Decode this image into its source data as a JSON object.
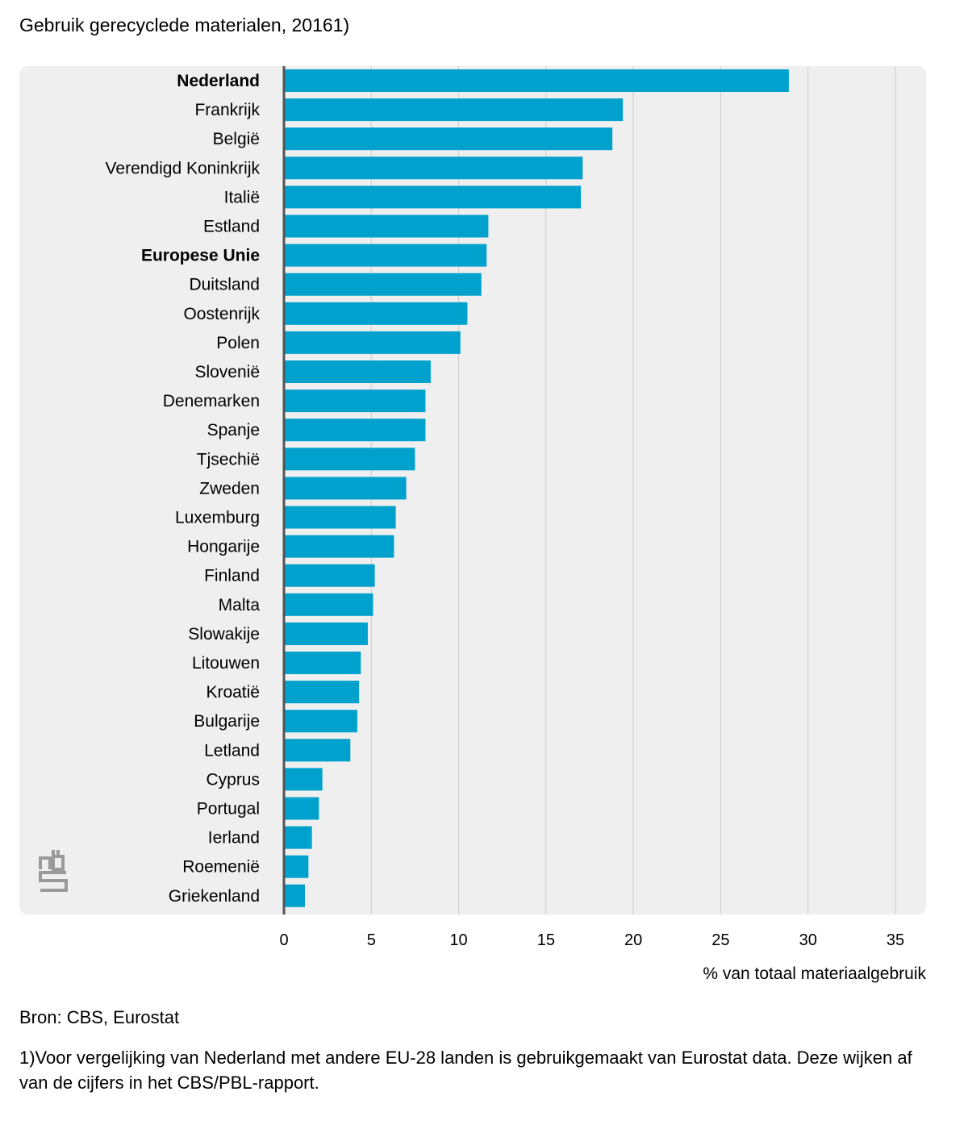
{
  "chart_data": {
    "type": "bar",
    "orientation": "horizontal",
    "title": "Gebruik gerecyclede materialen, 20161)",
    "xlabel": "% van totaal materiaalgebruik",
    "ylabel": "",
    "xlim": [
      0,
      35
    ],
    "ticks": [
      "0",
      "5",
      "10",
      "15",
      "20",
      "25",
      "30",
      "35"
    ],
    "tick_values": [
      0,
      5,
      10,
      15,
      20,
      25,
      30,
      35
    ],
    "grid": "vertical",
    "legend": "none",
    "bar_color": "#00a1cd",
    "background_color": "#efefef",
    "categories": [
      "Nederland",
      "Frankrijk",
      "België",
      "Verendigd Koninkrijk",
      "Italië",
      "Estland",
      "Europese Unie",
      "Duitsland",
      "Oostenrijk",
      "Polen",
      "Slovenië",
      "Denemarken",
      "Spanje",
      "Tjsechië",
      "Zweden",
      "Luxemburg",
      "Hongarije",
      "Finland",
      "Malta",
      "Slowakije",
      "Litouwen",
      "Kroatië",
      "Bulgarije",
      "Letland",
      "Cyprus",
      "Portugal",
      "Ierland",
      "Roemenië",
      "Griekenland"
    ],
    "highlighted": [
      "Nederland",
      "Europese Unie"
    ],
    "values": [
      28.9,
      19.4,
      18.8,
      17.1,
      17.0,
      11.7,
      11.6,
      11.3,
      10.5,
      10.1,
      8.4,
      8.1,
      8.1,
      7.5,
      7.0,
      6.4,
      6.3,
      5.2,
      5.1,
      4.8,
      4.4,
      4.3,
      4.2,
      3.8,
      2.2,
      2.0,
      1.6,
      1.4,
      1.2
    ]
  },
  "source": "Bron: CBS, Eurostat",
  "footnote": "1)Voor vergelijking van Nederland met andere EU-28 landen is gebruikgemaakt van Eurostat data. Deze wijken af van de cijfers in het CBS/PBL-rapport.",
  "logo": {
    "name": "cbs-logo",
    "text": "cbs",
    "color": "#9a9a9a"
  }
}
